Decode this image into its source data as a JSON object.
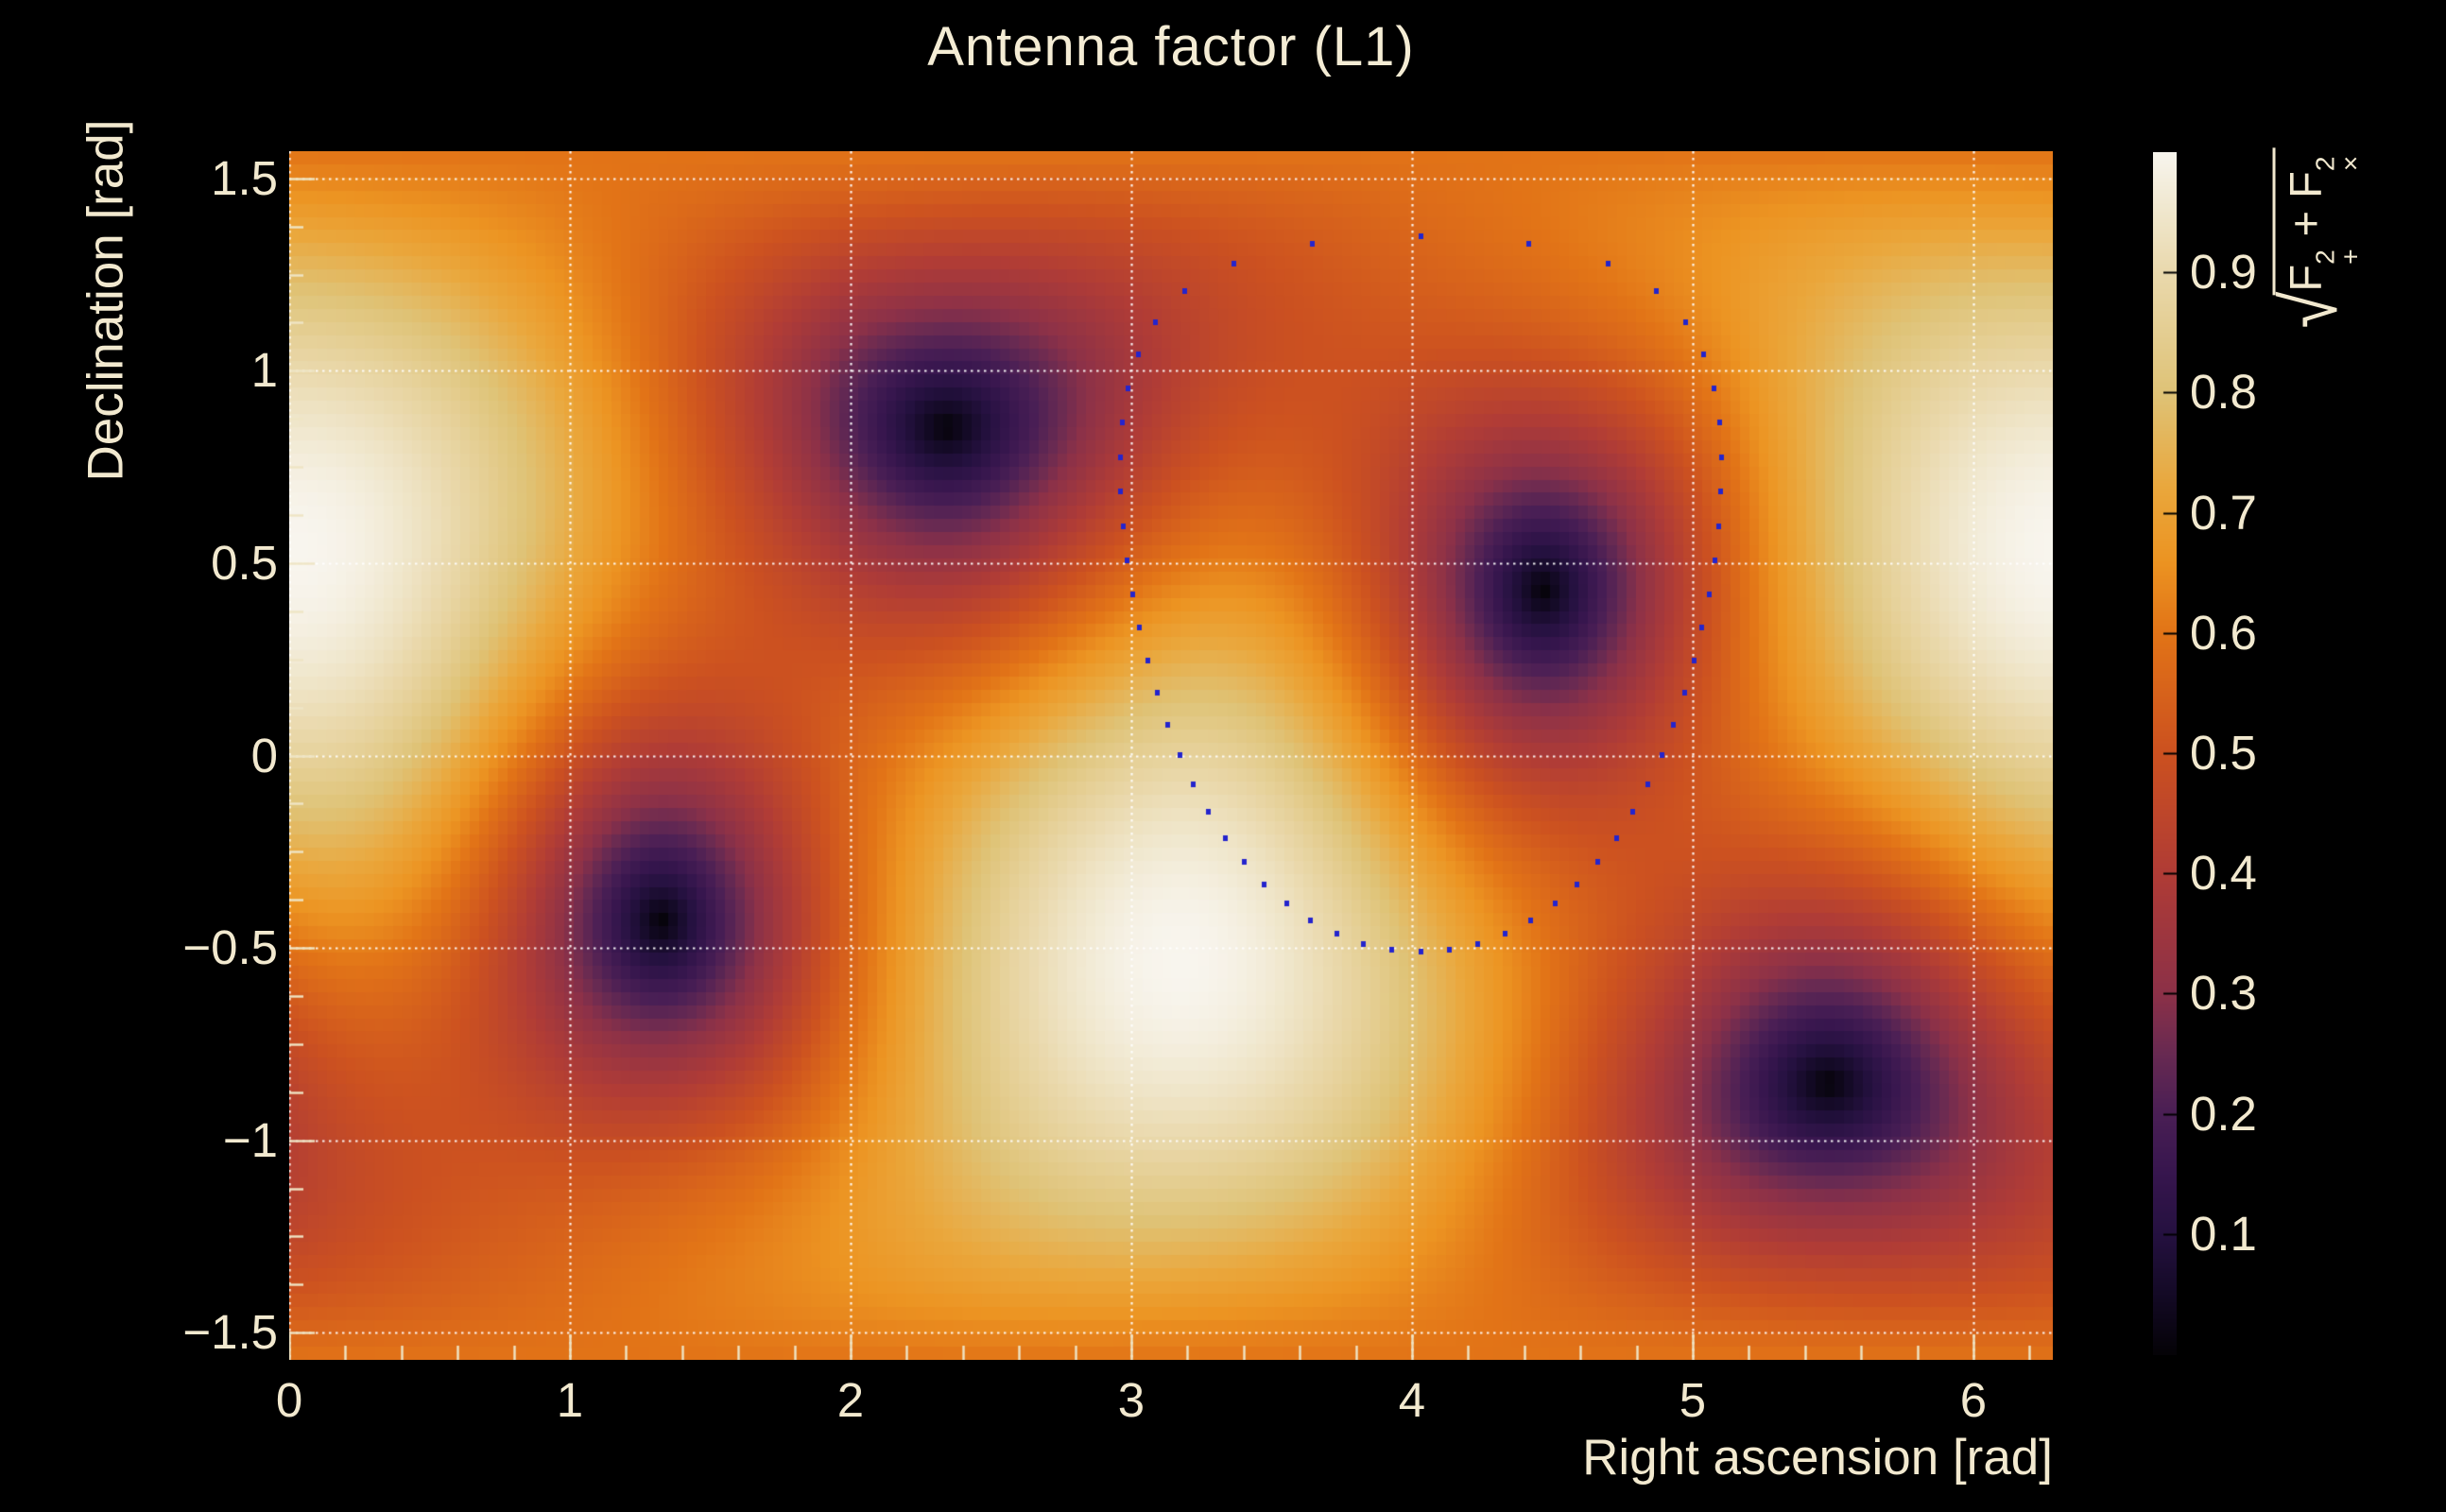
{
  "ui": {
    "title": "Antenna factor (L1)",
    "x_axis_title": "Right ascension [rad]",
    "y_axis_title": "Declination [rad]",
    "colorbar_title_pieces": {
      "radical": "√",
      "f1": "F",
      "f1_sup": "2",
      "f1_sub": "+",
      "plus": " + ",
      "f2": "F",
      "f2_sup": "2",
      "f2_sub": "×"
    }
  },
  "chart_data": {
    "type": "heatmap",
    "title": "Antenna factor (L1)",
    "xlabel": "Right ascension [rad]",
    "ylabel": "Declination [rad]",
    "zlabel": "sqrt(F_plus^2 + F_cross^2)",
    "x_range": [
      0,
      6.28319
    ],
    "y_range": [
      -1.5708,
      1.5708
    ],
    "z_range": [
      0,
      1
    ],
    "x_ticks": [
      {
        "v": 0,
        "label": "0"
      },
      {
        "v": 1,
        "label": "1"
      },
      {
        "v": 2,
        "label": "2"
      },
      {
        "v": 3,
        "label": "3"
      },
      {
        "v": 4,
        "label": "4"
      },
      {
        "v": 5,
        "label": "5"
      },
      {
        "v": 6,
        "label": "6"
      }
    ],
    "x_minor_step": 0.2,
    "y_ticks": [
      {
        "v": 1.5,
        "label": "1.5"
      },
      {
        "v": 1.0,
        "label": "1"
      },
      {
        "v": 0.5,
        "label": "0.5"
      },
      {
        "v": 0.0,
        "label": "0"
      },
      {
        "v": -0.5,
        "label": "−0.5"
      },
      {
        "v": -1.0,
        "label": "−1"
      },
      {
        "v": -1.5,
        "label": "−1.5"
      }
    ],
    "y_minor_step": 0.125,
    "colorbar_ticks": [
      {
        "v": 0.9,
        "label": "0.9"
      },
      {
        "v": 0.8,
        "label": "0.8"
      },
      {
        "v": 0.7,
        "label": "0.7"
      },
      {
        "v": 0.6,
        "label": "0.6"
      },
      {
        "v": 0.5,
        "label": "0.5"
      },
      {
        "v": 0.4,
        "label": "0.4"
      },
      {
        "v": 0.3,
        "label": "0.3"
      },
      {
        "v": 0.2,
        "label": "0.2"
      },
      {
        "v": 0.1,
        "label": "0.1"
      }
    ],
    "grid": "dotted-white-at-every-major-tick",
    "legend_position": "colorbar-right",
    "bins": {
      "nx": 186,
      "ny": 92
    },
    "field_model": "F_rms(ra,dec) = sqrt( 0.25*(1+u^2)^2*cos^2(2*phi) + u^2*sin^2(2*phi) ), u = cos(angle to detector zenith), phi = local azimuth from arm bisector",
    "detector": {
      "name": "L1",
      "zenith_ra": 0.03,
      "zenith_dec": 0.533,
      "bisector_azimuth_deg": -16
    },
    "maxima_radec": [
      [
        0.03,
        0.533
      ],
      [
        3.17,
        -0.533
      ]
    ],
    "nulls_radec": [
      [
        2.31,
        0.85
      ],
      [
        4.44,
        0.43
      ],
      [
        1.3,
        -0.43
      ],
      [
        5.45,
        -0.85
      ]
    ],
    "overlay_ring": {
      "shape": "spherical-circle-of-dots",
      "center_ra": 4.03,
      "center_dec": 0.42,
      "radius_rad": 0.93,
      "n_dots": 56,
      "dot_color": "#2424cd",
      "dot_size_px": 5
    },
    "colormap_stops": [
      [
        0.0,
        "#050307"
      ],
      [
        0.05,
        "#140a26"
      ],
      [
        0.1,
        "#251140"
      ],
      [
        0.15,
        "#37164e"
      ],
      [
        0.2,
        "#4a1f55"
      ],
      [
        0.25,
        "#682a52"
      ],
      [
        0.3,
        "#8c3148"
      ],
      [
        0.4,
        "#b03c36"
      ],
      [
        0.5,
        "#cc5120"
      ],
      [
        0.6,
        "#e27417"
      ],
      [
        0.66,
        "#ec9422"
      ],
      [
        0.72,
        "#eaa73c"
      ],
      [
        0.8,
        "#dfc377"
      ],
      [
        0.9,
        "#ead9ad"
      ],
      [
        0.95,
        "#f0e7cd"
      ],
      [
        1.0,
        "#f8f5ee"
      ]
    ],
    "style": {
      "background": "#000000",
      "text_color": "#f2e9cf",
      "axis_tick_color": "#efe5c5",
      "grid_color": "rgba(255,255,255,0.92)",
      "colorbar_tick_color": "#000000"
    }
  }
}
